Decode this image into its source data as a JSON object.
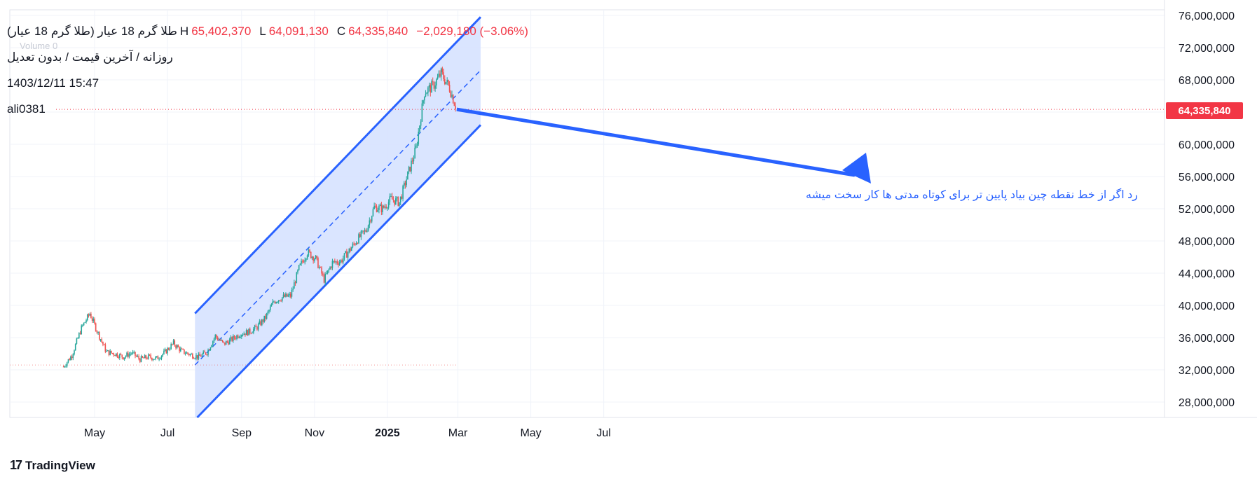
{
  "legend": {
    "symbol": "طلا گرم 18 عیار (طلا گرم 18 عیار)",
    "high_label": "H",
    "high": "65,402,370",
    "low_label": "L",
    "low": "64,091,130",
    "close_label": "C",
    "close": "64,335,840",
    "change": "−2,029,180 (−3.06%)",
    "subtitle": "روزانه / آخرین قیمت / بدون تعدیل",
    "volume_ghost": "Volume  0",
    "datetime": "1403/12/11 15:47",
    "author": "ali0381"
  },
  "annotation": "رد اگر از خط نقطه چین بیاد پایین تر برای کوتاه مدتی ها کار سخت میشه",
  "last_price_label": "64,335,840",
  "brand": {
    "name": "TradingView",
    "mark": "17"
  },
  "colors": {
    "up": "#26a69a",
    "down": "#ef5350",
    "channel": "#2962ff",
    "channel_fill": "#d6e2ff",
    "last_price": "#f23645"
  },
  "chart_data": {
    "type": "candlestick",
    "y_axis_ticks": [
      "28,000,000",
      "32,000,000",
      "36,000,000",
      "40,000,000",
      "44,000,000",
      "48,000,000",
      "52,000,000",
      "56,000,000",
      "60,000,000",
      "64,000,000",
      "68,000,000",
      "72,000,000",
      "76,000,000"
    ],
    "x_axis_ticks": [
      "May",
      "Jul",
      "Sep",
      "Nov",
      "2025",
      "Mar",
      "May",
      "Jul"
    ],
    "ylim": [
      26000000,
      76000000
    ],
    "price_series": [
      [
        "2024-04-05",
        32400000
      ],
      [
        "2024-04-12",
        33800000
      ],
      [
        "2024-04-20",
        37200000
      ],
      [
        "2024-04-27",
        39000000
      ],
      [
        "2024-05-04",
        36500000
      ],
      [
        "2024-05-11",
        34200000
      ],
      [
        "2024-05-18",
        34000000
      ],
      [
        "2024-05-25",
        33600000
      ],
      [
        "2024-06-01",
        34100000
      ],
      [
        "2024-06-08",
        33300000
      ],
      [
        "2024-06-15",
        33600000
      ],
      [
        "2024-06-22",
        33400000
      ],
      [
        "2024-06-29",
        34200000
      ],
      [
        "2024-07-06",
        35300000
      ],
      [
        "2024-07-13",
        34300000
      ],
      [
        "2024-07-20",
        33900000
      ],
      [
        "2024-07-27",
        33600000
      ],
      [
        "2024-08-03",
        34200000
      ],
      [
        "2024-08-10",
        36200000
      ],
      [
        "2024-08-17",
        35200000
      ],
      [
        "2024-08-24",
        35800000
      ],
      [
        "2024-08-31",
        36500000
      ],
      [
        "2024-09-07",
        36700000
      ],
      [
        "2024-09-14",
        37300000
      ],
      [
        "2024-09-21",
        38500000
      ],
      [
        "2024-09-28",
        40500000
      ],
      [
        "2024-10-05",
        41000000
      ],
      [
        "2024-10-12",
        41200000
      ],
      [
        "2024-10-19",
        44600000
      ],
      [
        "2024-10-26",
        46600000
      ],
      [
        "2024-11-02",
        45800000
      ],
      [
        "2024-11-09",
        43200000
      ],
      [
        "2024-11-16",
        45300000
      ],
      [
        "2024-11-23",
        45500000
      ],
      [
        "2024-11-30",
        46800000
      ],
      [
        "2024-12-07",
        48200000
      ],
      [
        "2024-12-14",
        49300000
      ],
      [
        "2024-12-21",
        52200000
      ],
      [
        "2024-12-28",
        52000000
      ],
      [
        "2025-01-04",
        53200000
      ],
      [
        "2025-01-11",
        52800000
      ],
      [
        "2025-01-18",
        56200000
      ],
      [
        "2025-01-25",
        59500000
      ],
      [
        "2025-02-01",
        66500000
      ],
      [
        "2025-02-08",
        67200000
      ],
      [
        "2025-02-15",
        68800000
      ],
      [
        "2025-02-22",
        67000000
      ],
      [
        "2025-02-28",
        64335840
      ]
    ],
    "channel": {
      "upper": [
        [
          "2024-07-24",
          39000000
        ],
        [
          "2025-03-20",
          75800000
        ]
      ],
      "middle": [
        [
          "2024-07-24",
          32600000
        ],
        [
          "2025-03-20",
          69200000
        ]
      ],
      "lower": [
        [
          "2024-07-24",
          25800000
        ],
        [
          "2025-03-20",
          62400000
        ]
      ]
    },
    "last_price": 64335840
  }
}
